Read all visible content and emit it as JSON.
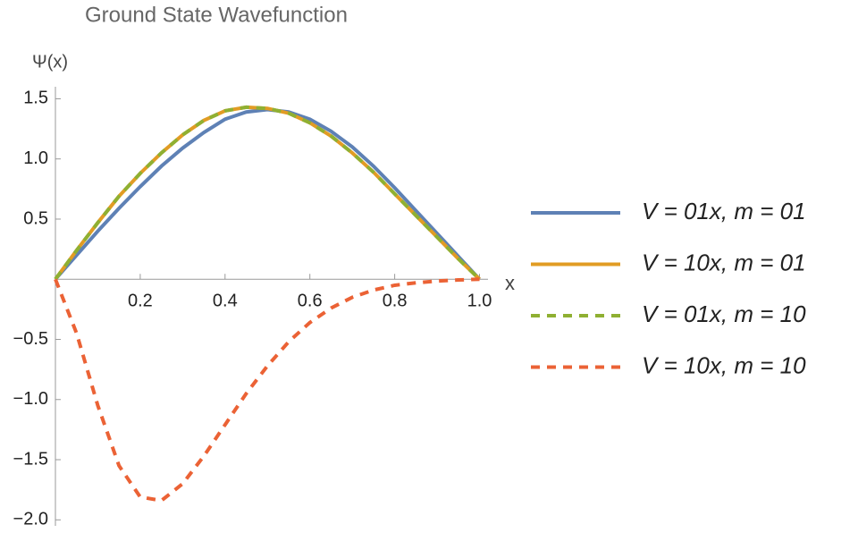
{
  "chart_data": {
    "type": "line",
    "title": "Ground State Wavefunction",
    "ylabel": "Ψ(x)",
    "xlabel": "x",
    "x": [
      0,
      0.05,
      0.1,
      0.15,
      0.2,
      0.25,
      0.3,
      0.35,
      0.4,
      0.45,
      0.5,
      0.55,
      0.6,
      0.65,
      0.7,
      0.75,
      0.8,
      0.85,
      0.9,
      0.95,
      1.0
    ],
    "series": [
      {
        "name": "V = 01x, m = 01",
        "color": "#5e81b5",
        "dashed": false,
        "values": [
          0,
          0.2,
          0.4,
          0.59,
          0.77,
          0.94,
          1.09,
          1.22,
          1.33,
          1.39,
          1.41,
          1.39,
          1.33,
          1.23,
          1.1,
          0.94,
          0.76,
          0.57,
          0.38,
          0.19,
          0
        ]
      },
      {
        "name": "V = 10x, m = 01",
        "color": "#e19c24",
        "dashed": false,
        "values": [
          0,
          0.24,
          0.47,
          0.69,
          0.88,
          1.05,
          1.2,
          1.32,
          1.4,
          1.43,
          1.42,
          1.38,
          1.3,
          1.19,
          1.05,
          0.89,
          0.71,
          0.53,
          0.35,
          0.17,
          0
        ]
      },
      {
        "name": "V = 01x, m = 10",
        "color": "#8fb032",
        "dashed": true,
        "values": [
          0,
          0.24,
          0.47,
          0.69,
          0.88,
          1.05,
          1.2,
          1.32,
          1.4,
          1.43,
          1.42,
          1.38,
          1.3,
          1.19,
          1.05,
          0.89,
          0.71,
          0.53,
          0.35,
          0.17,
          0
        ]
      },
      {
        "name": "V = 10x, m = 10",
        "color": "#eb6235",
        "dashed": true,
        "values": [
          0,
          -0.45,
          -1.05,
          -1.55,
          -1.81,
          -1.84,
          -1.7,
          -1.47,
          -1.21,
          -0.95,
          -0.72,
          -0.52,
          -0.36,
          -0.24,
          -0.15,
          -0.09,
          -0.05,
          -0.03,
          -0.015,
          -0.006,
          0
        ]
      }
    ],
    "xlim": [
      0,
      1.02
    ],
    "ylim": [
      -2.05,
      1.6
    ],
    "xticks": [
      0.2,
      0.4,
      0.6,
      0.8,
      {
        "value": 1.0,
        "label": "1.0"
      }
    ],
    "yticks": [
      {
        "value": -2.0,
        "label": "−2.0"
      },
      {
        "value": -1.5,
        "label": "−1.5"
      },
      {
        "value": -1.0,
        "label": "−1.0"
      },
      {
        "value": -0.5,
        "label": "−0.5"
      },
      0.5,
      {
        "value": 1.0,
        "label": "1.0"
      },
      1.5
    ],
    "legend": "right"
  }
}
